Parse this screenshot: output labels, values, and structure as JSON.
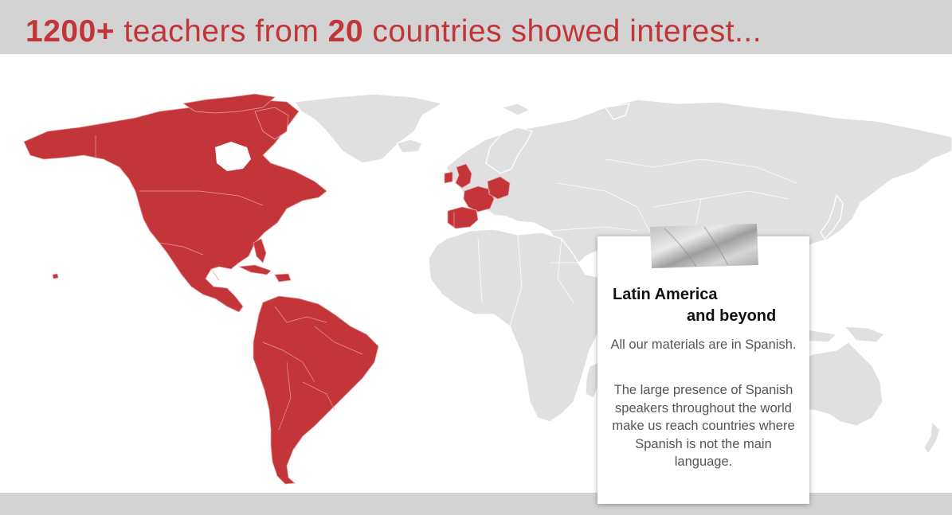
{
  "header": {
    "teacher_count": "1200+",
    "teachers_from_text": " teachers from ",
    "country_count": "20",
    "rest_text": " countries showed interest..."
  },
  "map": {
    "highlight_color": "#c33538",
    "base_color": "#e0e0e0",
    "highlighted_regions": [
      "Canada",
      "United States",
      "Mexico",
      "Central America",
      "Cuba",
      "Dominican Republic",
      "Colombia",
      "Venezuela",
      "Ecuador",
      "Peru",
      "Brazil",
      "Bolivia",
      "Paraguay",
      "Chile",
      "Argentina",
      "Uruguay",
      "United Kingdom",
      "Ireland",
      "France",
      "Spain",
      "Portugal",
      "Germany"
    ]
  },
  "card": {
    "title_line1": "Latin America",
    "title_line2": "and beyond",
    "paragraph1": "All our materials are in Spanish.",
    "paragraph2": "The large presence of Spanish speakers throughout the world make us reach countries where Spanish is not the main language."
  }
}
